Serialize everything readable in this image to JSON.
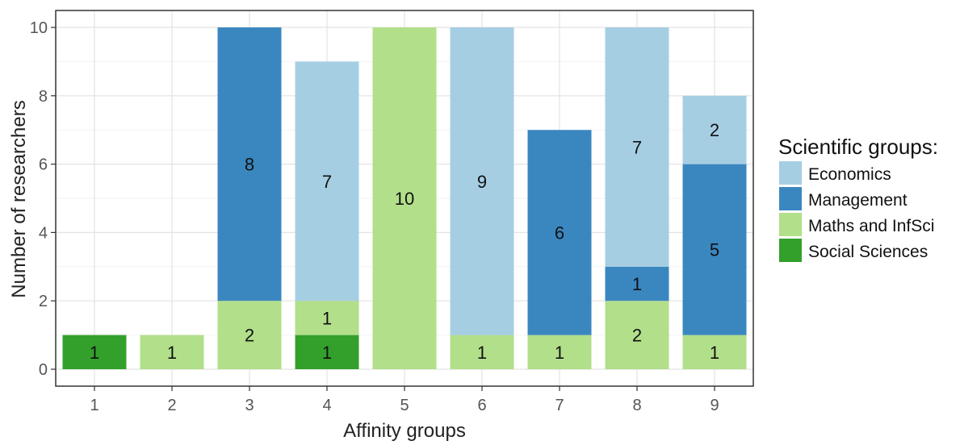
{
  "chart_data": {
    "type": "bar",
    "stacked": true,
    "xlabel": "Affinity groups",
    "ylabel": "Number of researchers",
    "categories": [
      "1",
      "2",
      "3",
      "4",
      "5",
      "6",
      "7",
      "8",
      "9"
    ],
    "yticks": [
      0,
      2,
      4,
      6,
      8,
      10
    ],
    "ylim": [
      0,
      10
    ],
    "grid": true,
    "legend": {
      "title": "Scientific groups:",
      "placement": "right"
    },
    "series": [
      {
        "name": "Social Sciences",
        "color": "#33a02c",
        "values": [
          1,
          0,
          0,
          1,
          0,
          0,
          0,
          0,
          0
        ]
      },
      {
        "name": "Maths and InfSci",
        "color": "#b2df8a",
        "values": [
          0,
          1,
          2,
          1,
          10,
          1,
          1,
          2,
          1
        ]
      },
      {
        "name": "Management",
        "color": "#3a87c0",
        "values": [
          0,
          0,
          8,
          0,
          0,
          0,
          6,
          1,
          5
        ]
      },
      {
        "name": "Economics",
        "color": "#a6cee3",
        "values": [
          0,
          0,
          0,
          7,
          0,
          9,
          0,
          7,
          2
        ]
      }
    ],
    "legend_order": [
      "Economics",
      "Management",
      "Maths and InfSci",
      "Social Sciences"
    ]
  }
}
